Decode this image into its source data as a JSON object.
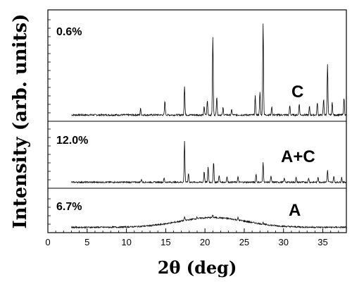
{
  "chart_data": {
    "type": "line",
    "xlabel": "2θ (deg)",
    "ylabel": "Intensity (arb. units)",
    "xlim": [
      0,
      38
    ],
    "x_ticks": [
      0,
      5,
      10,
      15,
      20,
      25,
      30,
      35
    ],
    "x_tick_labels": [
      "0",
      "5",
      "10",
      "15",
      "20",
      "25",
      "30",
      "35"
    ],
    "x_data_range": [
      3,
      38
    ],
    "grid": false,
    "legend": "none",
    "panels": [
      {
        "percent_label": "0.6%",
        "phase_label": "C",
        "baseline": 0.02,
        "noise": 0.008,
        "amorphous_hump": [],
        "peaks": [
          {
            "x": 11.8,
            "y": 0.06
          },
          {
            "x": 14.9,
            "y": 0.13
          },
          {
            "x": 17.4,
            "y": 0.28
          },
          {
            "x": 19.9,
            "y": 0.08
          },
          {
            "x": 20.3,
            "y": 0.14
          },
          {
            "x": 21.0,
            "y": 0.75
          },
          {
            "x": 21.5,
            "y": 0.18
          },
          {
            "x": 22.3,
            "y": 0.07
          },
          {
            "x": 23.4,
            "y": 0.05
          },
          {
            "x": 26.4,
            "y": 0.18
          },
          {
            "x": 27.0,
            "y": 0.22
          },
          {
            "x": 27.4,
            "y": 0.88
          },
          {
            "x": 28.5,
            "y": 0.08
          },
          {
            "x": 30.8,
            "y": 0.09
          },
          {
            "x": 32.0,
            "y": 0.11
          },
          {
            "x": 33.3,
            "y": 0.08
          },
          {
            "x": 34.3,
            "y": 0.12
          },
          {
            "x": 35.1,
            "y": 0.15
          },
          {
            "x": 35.6,
            "y": 0.48
          },
          {
            "x": 36.2,
            "y": 0.12
          },
          {
            "x": 37.7,
            "y": 0.16
          }
        ]
      },
      {
        "percent_label": "12.0%",
        "phase_label": "A+C",
        "baseline": 0.03,
        "noise": 0.012,
        "amorphous_hump": [],
        "peaks": [
          {
            "x": 11.9,
            "y": 0.05
          },
          {
            "x": 14.8,
            "y": 0.07
          },
          {
            "x": 17.4,
            "y": 0.68
          },
          {
            "x": 17.9,
            "y": 0.15
          },
          {
            "x": 19.9,
            "y": 0.18
          },
          {
            "x": 20.4,
            "y": 0.26
          },
          {
            "x": 21.1,
            "y": 0.34
          },
          {
            "x": 21.8,
            "y": 0.12
          },
          {
            "x": 22.8,
            "y": 0.1
          },
          {
            "x": 24.2,
            "y": 0.09
          },
          {
            "x": 26.5,
            "y": 0.14
          },
          {
            "x": 27.4,
            "y": 0.33
          },
          {
            "x": 28.4,
            "y": 0.1
          },
          {
            "x": 30.1,
            "y": 0.07
          },
          {
            "x": 31.6,
            "y": 0.08
          },
          {
            "x": 33.2,
            "y": 0.07
          },
          {
            "x": 34.4,
            "y": 0.09
          },
          {
            "x": 35.6,
            "y": 0.2
          },
          {
            "x": 36.4,
            "y": 0.1
          },
          {
            "x": 37.4,
            "y": 0.08
          }
        ]
      },
      {
        "percent_label": "6.7%",
        "phase_label": "A",
        "baseline": 0.03,
        "noise": 0.02,
        "amorphous_hump": [
          {
            "center": 21,
            "width": 6,
            "height": 0.26
          }
        ],
        "peaks": [
          {
            "x": 17.4,
            "y": 0.1
          },
          {
            "x": 19.0,
            "y": 0.04
          },
          {
            "x": 21.0,
            "y": 0.06
          },
          {
            "x": 24.2,
            "y": 0.06
          },
          {
            "x": 27.4,
            "y": 0.04
          }
        ]
      }
    ]
  }
}
